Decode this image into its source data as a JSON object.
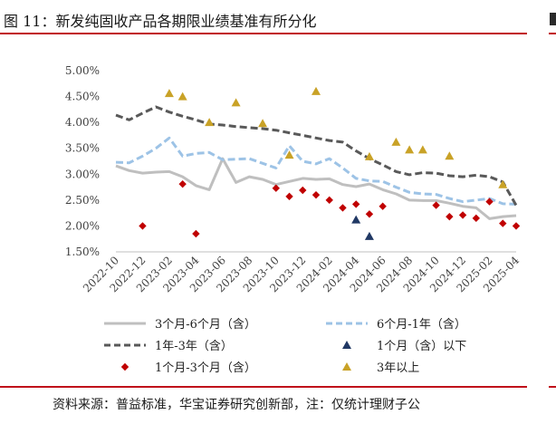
{
  "figure": {
    "title": "图 11：新发纯固收产品各期限业绩基准有所分化",
    "source": "资料来源：普益标准，华宝证券研究创新部，注：仅统计理财子公"
  },
  "chart_data": {
    "type": "line",
    "title": "新发纯固收产品各期限业绩基准有所分化",
    "xlabel": "",
    "ylabel": "",
    "ylim": [
      1.5,
      5.0
    ],
    "yticks": [
      "1.50%",
      "2.00%",
      "2.50%",
      "3.00%",
      "3.50%",
      "4.00%",
      "4.50%",
      "5.00%"
    ],
    "ytick_values": [
      1.5,
      2.0,
      2.5,
      3.0,
      3.5,
      4.0,
      4.5,
      5.0
    ],
    "xticks": [
      "2022-10",
      "2022-12",
      "2023-02",
      "2023-04",
      "2023-06",
      "2023-08",
      "2023-10",
      "2023-12",
      "2024-02",
      "2024-04",
      "2024-06",
      "2024-08",
      "2024-10",
      "2024-12",
      "2025-02",
      "2025-04"
    ],
    "x_months": [
      "2022-10",
      "2022-11",
      "2022-12",
      "2023-01",
      "2023-02",
      "2023-03",
      "2023-04",
      "2023-05",
      "2023-06",
      "2023-07",
      "2023-08",
      "2023-09",
      "2023-10",
      "2023-11",
      "2023-12",
      "2024-01",
      "2024-02",
      "2024-03",
      "2024-04",
      "2024-05",
      "2024-06",
      "2024-07",
      "2024-08",
      "2024-09",
      "2024-10",
      "2024-11",
      "2024-12",
      "2025-01",
      "2025-02",
      "2025-03",
      "2025-04"
    ],
    "legend_position": "bottom",
    "series": [
      {
        "name": "3个月-6个月（含）",
        "kind": "line",
        "style": "solid",
        "color": "#bfbfbf",
        "values": [
          3.16,
          3.07,
          3.02,
          3.04,
          3.05,
          2.95,
          2.78,
          2.7,
          3.3,
          2.84,
          2.95,
          2.9,
          2.8,
          2.86,
          2.92,
          2.9,
          2.91,
          2.8,
          2.76,
          2.81,
          2.7,
          2.62,
          2.5,
          2.49,
          2.49,
          2.44,
          2.38,
          2.35,
          2.14,
          2.18,
          2.2
        ]
      },
      {
        "name": "6个月-1年（含）",
        "kind": "line",
        "style": "dashed",
        "color": "#9dc3e6",
        "values": [
          3.23,
          3.22,
          3.35,
          3.5,
          3.7,
          3.35,
          3.4,
          3.42,
          3.28,
          3.29,
          3.3,
          3.21,
          3.12,
          3.55,
          3.25,
          3.2,
          3.3,
          3.12,
          2.92,
          2.87,
          2.86,
          2.75,
          2.65,
          2.62,
          2.61,
          2.53,
          2.47,
          2.5,
          2.53,
          2.43,
          2.42
        ]
      },
      {
        "name": "1年-3年（含）",
        "kind": "line",
        "style": "dashed",
        "color": "#595959",
        "values": [
          4.14,
          4.05,
          4.18,
          4.3,
          4.2,
          4.12,
          4.05,
          3.97,
          3.95,
          3.92,
          3.9,
          3.88,
          3.85,
          3.8,
          3.75,
          3.7,
          3.65,
          3.62,
          3.45,
          3.3,
          3.18,
          3.05,
          2.99,
          3.03,
          3.02,
          2.97,
          2.95,
          2.98,
          2.95,
          2.85,
          2.4
        ]
      },
      {
        "name": "1个月（含）以下",
        "kind": "scatter",
        "marker": "triangle",
        "color": "#203864",
        "points": [
          {
            "x": "2024-04",
            "y": 2.12
          },
          {
            "x": "2024-05",
            "y": 1.8
          }
        ]
      },
      {
        "name": "1个月-3个月（含）",
        "kind": "scatter",
        "marker": "diamond",
        "color": "#c00000",
        "points": [
          {
            "x": "2022-12",
            "y": 2.0
          },
          {
            "x": "2023-03",
            "y": 2.81
          },
          {
            "x": "2023-04",
            "y": 1.85
          },
          {
            "x": "2023-10",
            "y": 2.73
          },
          {
            "x": "2023-11",
            "y": 2.57
          },
          {
            "x": "2023-12",
            "y": 2.69
          },
          {
            "x": "2024-01",
            "y": 2.6
          },
          {
            "x": "2024-02",
            "y": 2.5
          },
          {
            "x": "2024-03",
            "y": 2.35
          },
          {
            "x": "2024-04",
            "y": 2.42
          },
          {
            "x": "2024-05",
            "y": 2.23
          },
          {
            "x": "2024-06",
            "y": 2.38
          },
          {
            "x": "2024-10",
            "y": 2.4
          },
          {
            "x": "2024-11",
            "y": 2.18
          },
          {
            "x": "2024-12",
            "y": 2.21
          },
          {
            "x": "2025-01",
            "y": 2.15
          },
          {
            "x": "2025-02",
            "y": 2.47
          },
          {
            "x": "2025-03",
            "y": 2.05
          },
          {
            "x": "2025-04",
            "y": 2.0
          }
        ]
      },
      {
        "name": "3年以上",
        "kind": "scatter",
        "marker": "triangle",
        "color": "#c9a227",
        "points": [
          {
            "x": "2023-02",
            "y": 4.56
          },
          {
            "x": "2023-03",
            "y": 4.5
          },
          {
            "x": "2023-05",
            "y": 4.0
          },
          {
            "x": "2023-07",
            "y": 4.38
          },
          {
            "x": "2023-09",
            "y": 3.98
          },
          {
            "x": "2023-11",
            "y": 3.37
          },
          {
            "x": "2024-01",
            "y": 4.6
          },
          {
            "x": "2024-05",
            "y": 3.34
          },
          {
            "x": "2024-07",
            "y": 3.62
          },
          {
            "x": "2024-08",
            "y": 3.47
          },
          {
            "x": "2024-09",
            "y": 3.47
          },
          {
            "x": "2024-11",
            "y": 3.35
          },
          {
            "x": "2025-03",
            "y": 2.8
          }
        ]
      }
    ]
  },
  "legend_order": [
    0,
    1,
    2,
    3,
    4,
    5
  ]
}
